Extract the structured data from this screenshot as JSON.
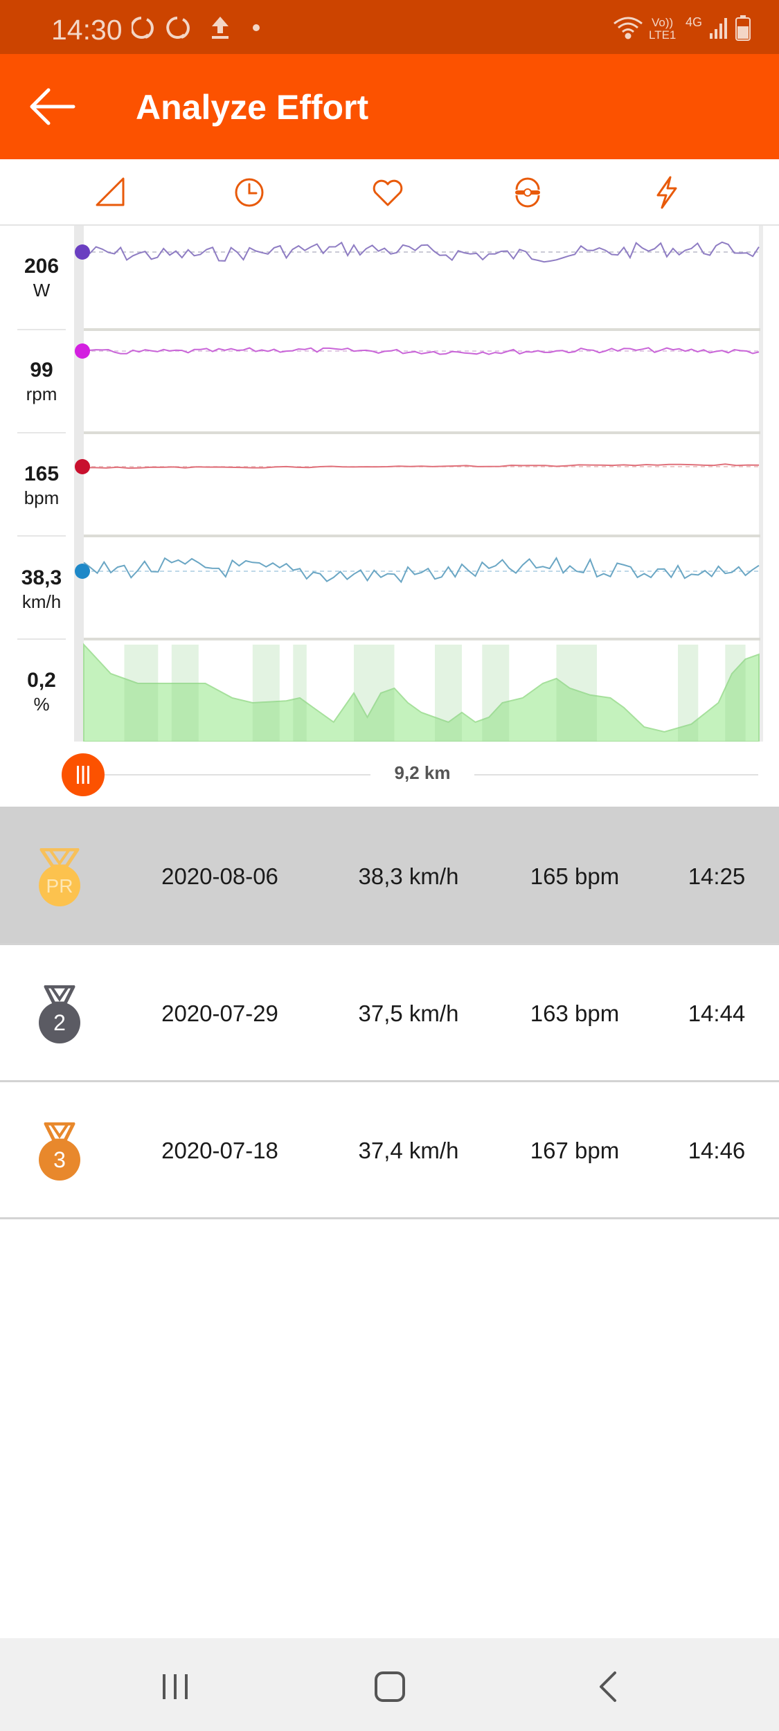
{
  "status_bar": {
    "time": "14:30",
    "network_label_top": "Vo))",
    "network_label_bottom": "LTE1",
    "network_type": "4G",
    "left_icons": [
      "sync-icon",
      "sync-icon",
      "upload-icon",
      "dot-icon"
    ],
    "right_icons": [
      "wifi-icon",
      "signal-icon",
      "battery-icon"
    ]
  },
  "app_bar": {
    "title": "Analyze Effort",
    "back_icon": "arrow-left-icon"
  },
  "tabs": [
    {
      "icon": "elevation-icon"
    },
    {
      "icon": "clock-icon"
    },
    {
      "icon": "heart-icon"
    },
    {
      "icon": "cadence-icon"
    },
    {
      "icon": "lightning-icon"
    }
  ],
  "metrics": [
    {
      "value": "206",
      "unit": "W"
    },
    {
      "value": "99",
      "unit": "rpm"
    },
    {
      "value": "165",
      "unit": "bpm"
    },
    {
      "value": "38,3",
      "unit": "km/h"
    },
    {
      "value": "0,2",
      "unit": "%"
    }
  ],
  "chart_data": {
    "type": "line",
    "series": [
      {
        "unit": "W",
        "color": "#8e7cc3",
        "marker_color": "#6a3fc1"
      },
      {
        "unit": "rpm",
        "color": "#c964d8",
        "marker_color": "#d320e0"
      },
      {
        "unit": "bpm",
        "color": "#e0707a",
        "marker_color": "#c8102e"
      },
      {
        "unit": "km/h",
        "color": "#6aa6c4",
        "marker_color": "#1e88c8"
      },
      {
        "unit": "%",
        "color": "#a8e6a0",
        "marker_color": "#7dcf75"
      }
    ]
  },
  "slider": {
    "label": "9,2 km",
    "handle_icon": "drag-handle-icon"
  },
  "efforts": [
    {
      "rank": "PR",
      "date": "2020-08-06",
      "speed": "38,3 km/h",
      "heart_rate": "165 bpm",
      "time": "14:25",
      "medal_color": "#fcc24e"
    },
    {
      "rank": "2",
      "date": "2020-07-29",
      "speed": "37,5 km/h",
      "heart_rate": "163 bpm",
      "time": "14:44",
      "medal_color": "#5b5b63"
    },
    {
      "rank": "3",
      "date": "2020-07-18",
      "speed": "37,4 km/h",
      "heart_rate": "167 bpm",
      "time": "14:46",
      "medal_color": "#e8882c"
    }
  ],
  "nav_bar": {
    "icons": [
      "recent-apps-icon",
      "home-icon",
      "back-icon"
    ]
  }
}
